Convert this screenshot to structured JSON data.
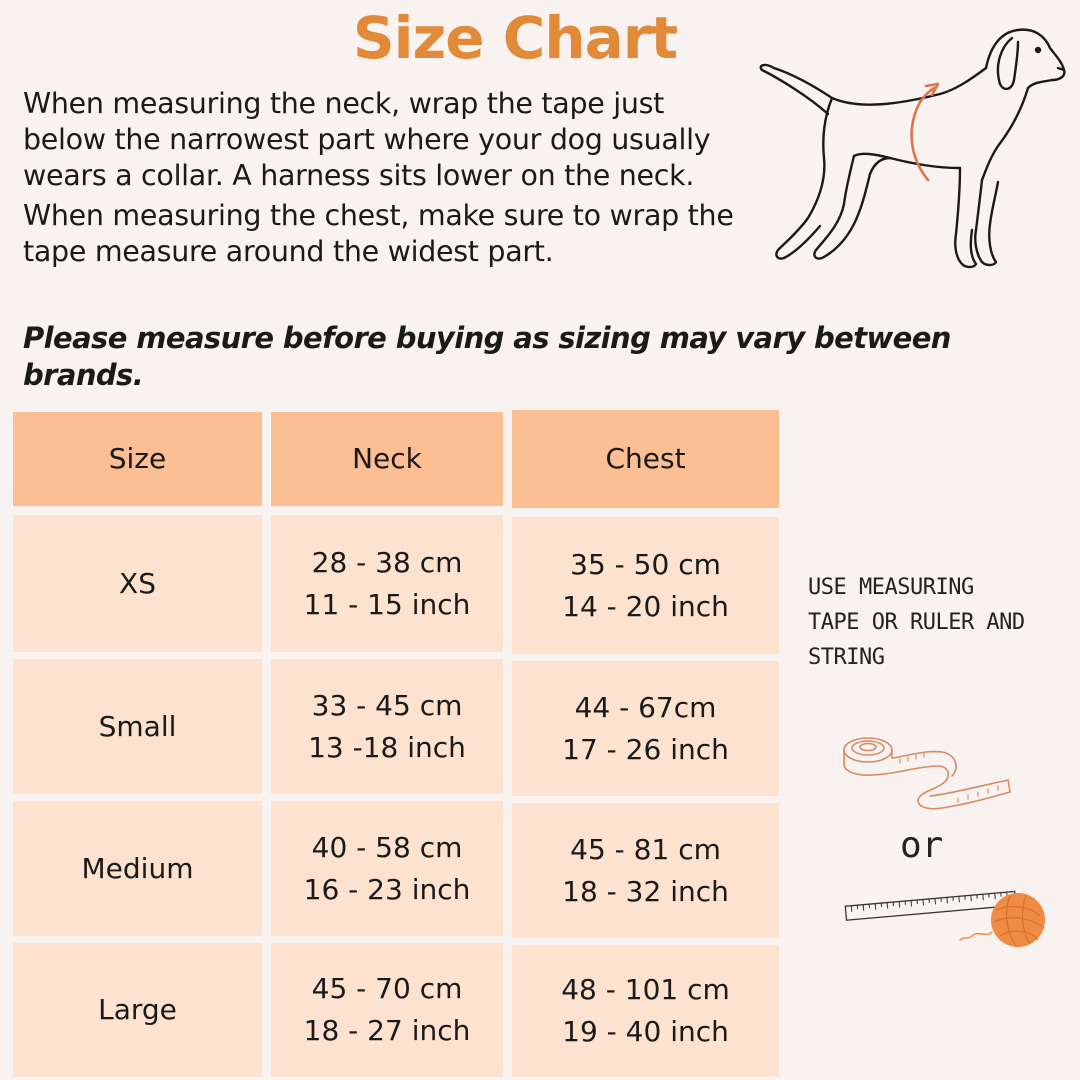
{
  "title": "Size Chart",
  "intro": {
    "neck": "When measuring the neck, wrap the tape just below the narrowest part where your dog usually wears a collar. A harness sits lower on the neck.",
    "chest": "When measuring the chest, make sure to wrap the tape measure around the widest part."
  },
  "warning": "Please measure before buying as sizing may vary between brands.",
  "table": {
    "headers": [
      "Size",
      "Neck",
      "Chest"
    ],
    "rows": [
      {
        "size": "XS",
        "neck_cm": "28 - 38 cm",
        "neck_in": "11 - 15 inch",
        "chest_cm": "35 - 50 cm",
        "chest_in": "14 - 20 inch"
      },
      {
        "size": "Small",
        "neck_cm": "33 - 45 cm",
        "neck_in": "13 -18 inch",
        "chest_cm": "44 -  67cm",
        "chest_in": "17 - 26 inch"
      },
      {
        "size": "Medium",
        "neck_cm": "40 - 58 cm",
        "neck_in": "16 - 23 inch",
        "chest_cm": "45 - 81 cm",
        "chest_in": "18 - 32 inch"
      },
      {
        "size": "Large",
        "neck_cm": "45 - 70 cm",
        "neck_in": "18 - 27 inch",
        "chest_cm": "48 - 101 cm",
        "chest_in": "19 - 40 inch"
      }
    ]
  },
  "tip": {
    "line1": "USE MEASURING",
    "line2": "TAPE OR RULER AND",
    "line3": "STRING"
  },
  "or_label": "or",
  "colors": {
    "background": "#f8f3f0",
    "title": "#e08a3a",
    "header_fill": "#fcbe93",
    "row_fill": "#fde2cf",
    "accent_orange": "#ef8b45"
  },
  "icons": [
    "dog-illustration",
    "measuring-tape-icon",
    "ruler-icon",
    "yarn-ball-icon"
  ]
}
